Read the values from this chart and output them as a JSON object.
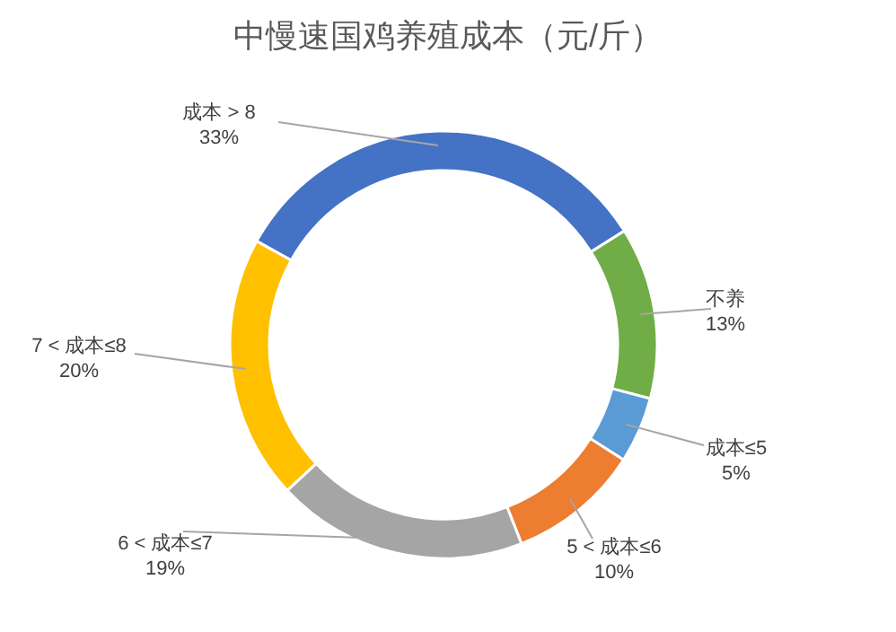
{
  "chart_data": {
    "type": "donut",
    "title": "中慢速国鸡养殖成本（元/斤）",
    "categories": [
      "成本 > 8",
      "不养",
      "成本≤5",
      "5 < 成本≤6",
      "6 < 成本≤7",
      "7 < 成本≤8"
    ],
    "values": [
      33,
      13,
      5,
      10,
      19,
      20
    ],
    "value_labels": [
      "33%",
      "13%",
      "5%",
      "10%",
      "19%",
      "20%"
    ],
    "colors": [
      "#4472c4",
      "#70ad47",
      "#5b9bd5",
      "#ed7d31",
      "#a5a5a5",
      "#ffc000"
    ],
    "legend": false
  }
}
